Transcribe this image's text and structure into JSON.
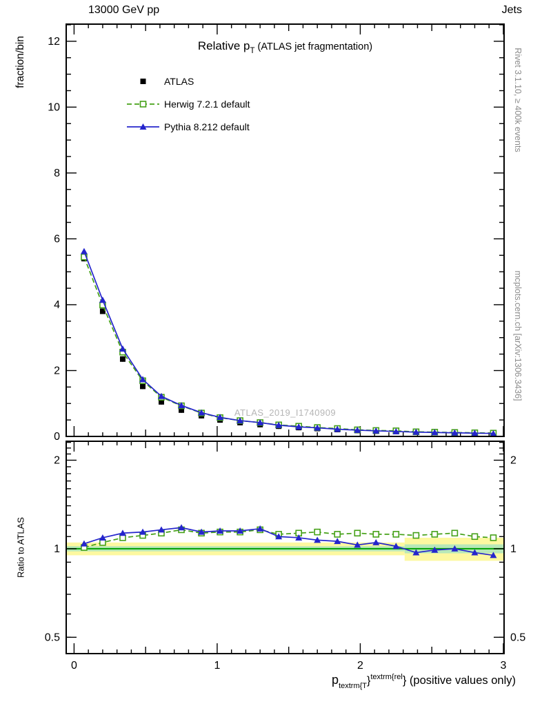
{
  "header": {
    "left": "13000 GeV pp",
    "right": "Jets"
  },
  "title": {
    "prefix": "Relative p",
    "sub": "T",
    "suffix": " (ATLAS jet fragmentation)"
  },
  "watermark": "ATLAS_2019_I1740909",
  "side_notes": {
    "top": "Rivet 3.1.10, ≥ 400k events",
    "bottom": "mcplots.cern.ch [arXiv:1306.3436]"
  },
  "axes": {
    "y_main_label": "fraction/bin",
    "y_ratio_label": "Ratio to ATLAS",
    "x_label": {
      "base": "p",
      "sub": "textrm{T",
      "mid": "}",
      "sup": "textrm{rel",
      "tail": "} (positive values only)"
    }
  },
  "legend": [
    {
      "label": "ATLAS",
      "type": "data",
      "color": "#000000",
      "marker": "square-filled"
    },
    {
      "label": "Herwig 7.2.1 default",
      "type": "line-dashed",
      "color": "#44a016",
      "marker": "square-open"
    },
    {
      "label": "Pythia 8.212 default",
      "type": "line-solid",
      "color": "#2525cc",
      "marker": "triangle-filled"
    }
  ],
  "chart_data": {
    "type": "line",
    "title": "Relative pT (ATLAS jet fragmentation)",
    "xlabel": "pT^rel (positive values only)",
    "ylabel_main": "fraction/bin",
    "ylabel_ratio": "Ratio to ATLAS",
    "x": [
      0.07,
      0.2,
      0.34,
      0.48,
      0.61,
      0.75,
      0.89,
      1.02,
      1.16,
      1.3,
      1.43,
      1.57,
      1.7,
      1.84,
      1.98,
      2.11,
      2.25,
      2.39,
      2.52,
      2.66,
      2.8,
      2.93
    ],
    "series": [
      {
        "name": "ATLAS",
        "color": "#000000",
        "marker": "square-filled",
        "line": "none",
        "values": [
          5.4,
          3.8,
          2.35,
          1.52,
          1.05,
          0.8,
          0.63,
          0.5,
          0.42,
          0.36,
          0.31,
          0.27,
          0.24,
          0.21,
          0.18,
          0.16,
          0.15,
          0.13,
          0.12,
          0.11,
          0.1,
          0.095
        ]
      },
      {
        "name": "Herwig 7.2.1 default",
        "color": "#44a016",
        "marker": "square-open",
        "line": "dashed",
        "values": [
          5.45,
          3.99,
          2.56,
          1.69,
          1.19,
          0.93,
          0.71,
          0.57,
          0.48,
          0.42,
          0.35,
          0.31,
          0.27,
          0.24,
          0.2,
          0.18,
          0.17,
          0.14,
          0.13,
          0.12,
          0.11,
          0.1
        ]
      },
      {
        "name": "Pythia 8.212 default",
        "color": "#2525cc",
        "marker": "triangle-filled",
        "line": "solid",
        "values": [
          5.62,
          4.14,
          2.66,
          1.73,
          1.22,
          0.94,
          0.72,
          0.58,
          0.48,
          0.42,
          0.34,
          0.29,
          0.26,
          0.22,
          0.19,
          0.17,
          0.15,
          0.13,
          0.12,
          0.11,
          0.1,
          0.09
        ]
      }
    ],
    "ratio_series": [
      {
        "name": "Herwig 7.2.1 default",
        "color": "#44a016",
        "marker": "square-open",
        "line": "dashed",
        "values": [
          1.01,
          1.05,
          1.09,
          1.11,
          1.13,
          1.16,
          1.13,
          1.14,
          1.14,
          1.16,
          1.12,
          1.13,
          1.14,
          1.12,
          1.13,
          1.12,
          1.12,
          1.11,
          1.12,
          1.13,
          1.1,
          1.09
        ]
      },
      {
        "name": "Pythia 8.212 default",
        "color": "#2525cc",
        "marker": "triangle-filled",
        "line": "solid",
        "values": [
          1.04,
          1.09,
          1.13,
          1.14,
          1.16,
          1.18,
          1.14,
          1.15,
          1.15,
          1.17,
          1.1,
          1.09,
          1.07,
          1.06,
          1.03,
          1.05,
          1.02,
          0.97,
          0.99,
          1.0,
          0.97,
          0.95
        ]
      }
    ],
    "ratio_band": {
      "center": 1.0,
      "line_color": "#00a000",
      "yellow": "#fdf8a0",
      "green": "#b8e8b8",
      "segments": [
        {
          "x0": -0.055,
          "x1": 2.31,
          "yellow_half": 0.05,
          "green_half": 0.02
        },
        {
          "x0": 2.31,
          "x1": 3.005,
          "yellow_half": 0.09,
          "green_half": 0.035
        }
      ]
    },
    "layout": {
      "xlim": [
        -0.055,
        3.005
      ],
      "ylim_main": [
        0,
        12.52
      ],
      "ylim_ratio": [
        0.44,
        2.32
      ],
      "ratio_log": true,
      "grid": false,
      "legend_position": "top-left",
      "xticks": {
        "major": [
          0,
          1,
          2,
          3
        ],
        "labels": [
          "0",
          "1",
          "2",
          "3"
        ],
        "medium_step": 0.5,
        "minor_step": 0.1
      },
      "yticks_main": {
        "major": [
          0,
          2,
          4,
          6,
          8,
          10,
          12
        ],
        "labels": [
          "0",
          "2",
          "4",
          "6",
          "8",
          "10",
          "12"
        ],
        "minor_step": 0.5
      },
      "yticks_ratio": {
        "major": [
          0.5,
          1,
          2
        ],
        "labels": [
          "0.5",
          "1",
          "2"
        ],
        "minors": [
          0.5,
          0.6,
          0.7,
          0.8,
          0.9,
          1.1,
          1.2,
          1.3,
          1.4,
          1.5,
          1.6,
          1.7,
          1.8,
          1.9,
          2.1,
          2.2,
          2.3
        ]
      }
    }
  }
}
